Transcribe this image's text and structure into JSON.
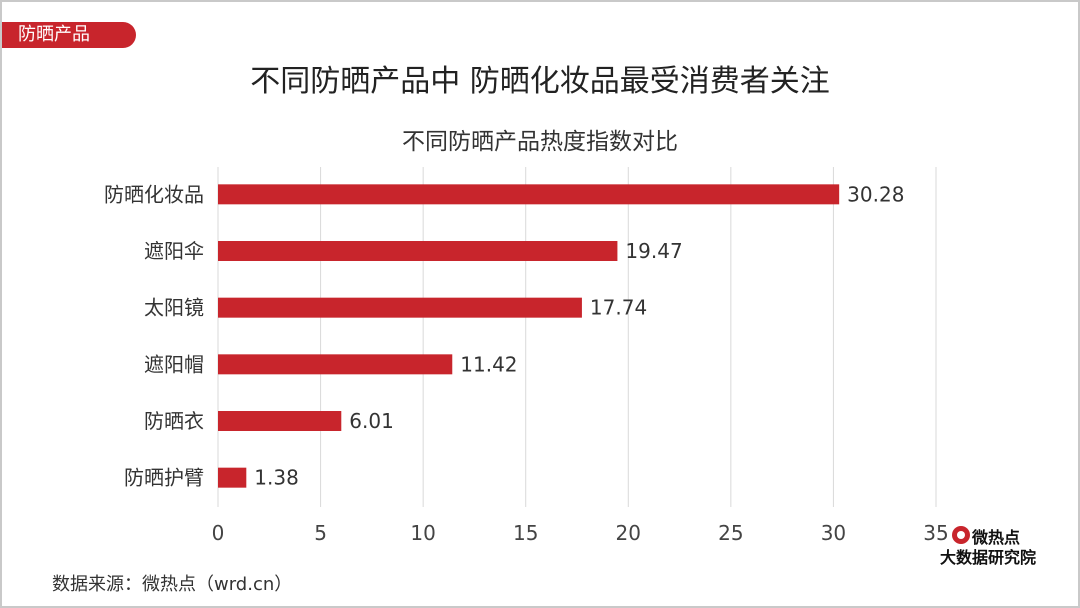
{
  "tag": "防晒产品",
  "main_title": "不同防晒产品中 防晒化妆品最受消费者关注",
  "source": "数据来源：微热点（wrd.cn）",
  "logo": {
    "line1": "微热点",
    "line2": "大数据研究院"
  },
  "colors": {
    "accent": "#c8252c",
    "grid": "#d9d9d9"
  },
  "chart_data": {
    "type": "bar",
    "orientation": "horizontal",
    "title": "不同防晒产品热度指数对比",
    "categories": [
      "防晒化妆品",
      "遮阳伞",
      "太阳镜",
      "遮阳帽",
      "防晒衣",
      "防晒护臂"
    ],
    "values": [
      30.28,
      19.47,
      17.74,
      11.42,
      6.01,
      1.38
    ],
    "value_labels": [
      "30.28",
      "19.47",
      "17.74",
      "11.42",
      "6.01",
      "1.38"
    ],
    "xlim": [
      0,
      35
    ],
    "xticks": [
      0,
      5,
      10,
      15,
      20,
      25,
      30,
      35
    ],
    "grid": "vertical"
  }
}
